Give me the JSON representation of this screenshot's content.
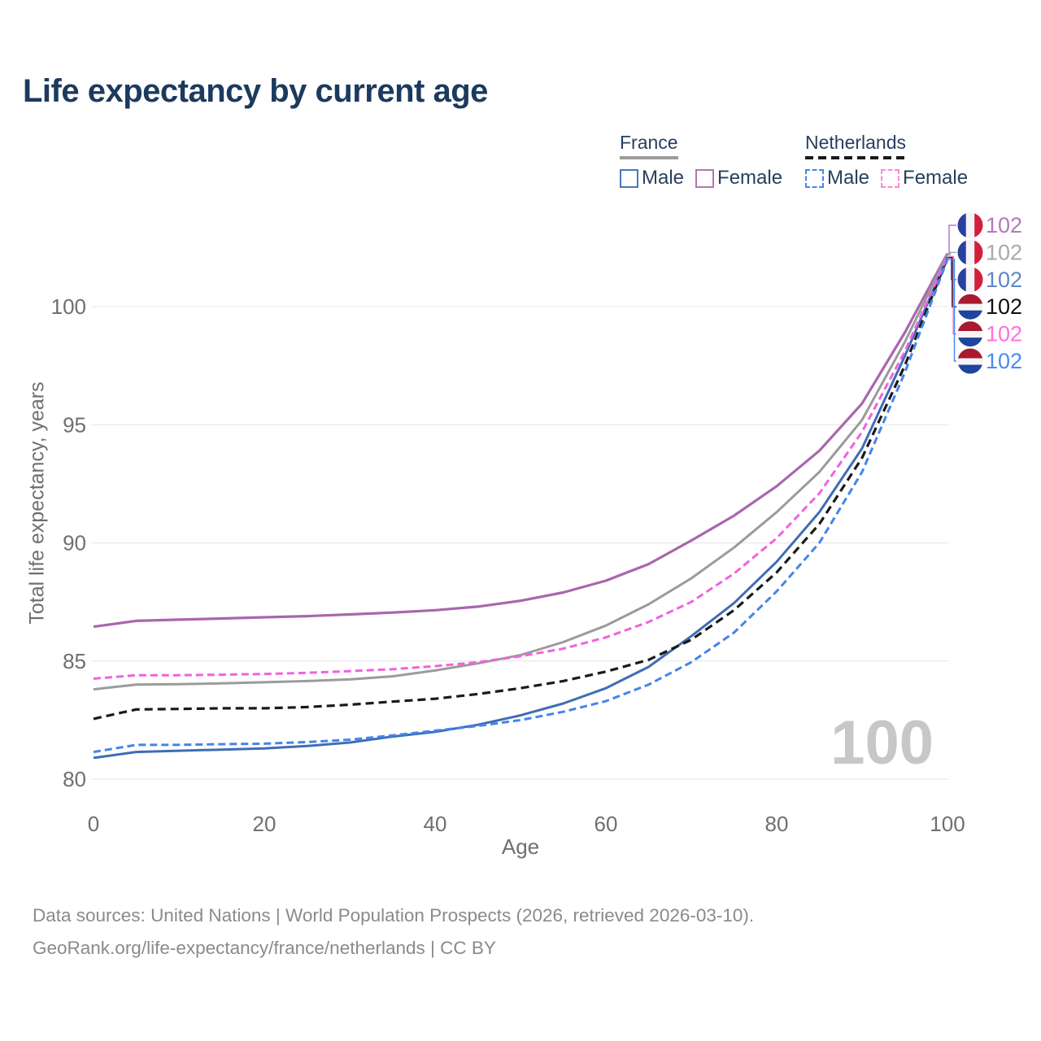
{
  "title": "Life expectancy by current age",
  "legend": {
    "groups": [
      {
        "country": "France",
        "line_style": "solid",
        "line_color": "#9b9b9b",
        "items": [
          {
            "label": "Male",
            "color": "#4a7ab8",
            "style": "solid"
          },
          {
            "label": "Female",
            "color": "#b277b2",
            "style": "solid"
          }
        ]
      },
      {
        "country": "Netherlands",
        "line_style": "dashed",
        "line_color": "#1a1a1a",
        "items": [
          {
            "label": "Male",
            "color": "#4487f0",
            "style": "dashed"
          },
          {
            "label": "Female",
            "color": "#ff85e0",
            "style": "dashed"
          }
        ]
      }
    ]
  },
  "watermark": "100",
  "footer": {
    "line1": "Data sources: United Nations | World Population Prospects (2026, retrieved 2026-03-10).",
    "line2": "GeoRank.org/life-expectancy/france/netherlands | CC BY"
  },
  "chart_data": {
    "type": "line",
    "title": "Life expectancy by current age",
    "xlabel": "Age",
    "ylabel": "Total life expectancy, years",
    "xticks": [
      0,
      20,
      40,
      60,
      80,
      100
    ],
    "yticks": [
      80,
      85,
      90,
      95,
      100
    ],
    "xlim": [
      0,
      100
    ],
    "ylim": [
      79,
      103
    ],
    "grid": "horizontal",
    "legend_position": "top-right",
    "x": [
      0,
      5,
      10,
      15,
      20,
      25,
      30,
      35,
      40,
      45,
      50,
      55,
      60,
      65,
      70,
      75,
      80,
      85,
      90,
      95,
      100
    ],
    "series": [
      {
        "name": "France Female",
        "country": "France",
        "sex": "Female",
        "flag": "france-flag-icon",
        "color": "#a966ae",
        "dash": "none",
        "width": 3.2,
        "end_label": "102",
        "label_color": "#b579bd",
        "values": [
          86.45,
          86.7,
          86.75,
          86.8,
          86.85,
          86.9,
          86.97,
          87.05,
          87.15,
          87.3,
          87.55,
          87.9,
          88.4,
          89.1,
          90.1,
          91.15,
          92.4,
          93.9,
          95.9,
          98.9,
          102.25
        ]
      },
      {
        "name": "France",
        "country": "France",
        "sex": "Both",
        "flag": "france-flag-icon",
        "color": "#9b9b9b",
        "dash": "none",
        "width": 3,
        "end_label": "102",
        "label_color": "#a9a9a9",
        "values": [
          83.8,
          84.0,
          84.02,
          84.05,
          84.1,
          84.15,
          84.22,
          84.35,
          84.6,
          84.9,
          85.25,
          85.8,
          86.5,
          87.4,
          88.5,
          89.8,
          91.3,
          93.0,
          95.2,
          98.5,
          102.2
        ]
      },
      {
        "name": "France Male",
        "country": "France",
        "sex": "Male",
        "flag": "france-flag-icon",
        "color": "#3f6db4",
        "dash": "none",
        "width": 3,
        "end_label": "102",
        "label_color": "#5d87c9",
        "values": [
          80.9,
          81.15,
          81.2,
          81.25,
          81.3,
          81.4,
          81.55,
          81.8,
          82.0,
          82.3,
          82.7,
          83.2,
          83.85,
          84.75,
          86.05,
          87.45,
          89.2,
          91.3,
          94.0,
          97.9,
          102.1
        ]
      },
      {
        "name": "Netherlands",
        "country": "Netherlands",
        "sex": "Both",
        "flag": "netherlands-flag-icon",
        "color": "#1a1a1a",
        "dash": "10 6",
        "width": 3.2,
        "end_label": "102",
        "label_color": "#111111",
        "values": [
          82.55,
          82.95,
          82.97,
          83.0,
          83.0,
          83.05,
          83.15,
          83.28,
          83.4,
          83.6,
          83.85,
          84.15,
          84.55,
          85.05,
          85.9,
          87.15,
          88.75,
          90.8,
          93.6,
          97.5,
          102.08
        ]
      },
      {
        "name": "Netherlands Female",
        "country": "Netherlands",
        "sex": "Female",
        "flag": "netherlands-flag-icon",
        "color": "#ef63dd",
        "dash": "9 5",
        "width": 3,
        "end_label": "102",
        "label_color": "#ff70dd",
        "values": [
          84.25,
          84.4,
          84.4,
          84.42,
          84.45,
          84.5,
          84.57,
          84.65,
          84.78,
          84.95,
          85.2,
          85.52,
          86.0,
          86.65,
          87.5,
          88.7,
          90.2,
          92.1,
          94.7,
          98.1,
          102.12
        ]
      },
      {
        "name": "Netherlands Male",
        "country": "Netherlands",
        "sex": "Male",
        "flag": "netherlands-flag-icon",
        "color": "#4484ec",
        "dash": "9 5",
        "width": 3,
        "end_label": "102",
        "label_color": "#4b8bf2",
        "values": [
          81.15,
          81.45,
          81.45,
          81.48,
          81.5,
          81.57,
          81.67,
          81.85,
          82.05,
          82.25,
          82.5,
          82.85,
          83.3,
          84.0,
          84.95,
          86.2,
          87.95,
          90.0,
          93.0,
          97.2,
          102.0
        ]
      }
    ]
  }
}
